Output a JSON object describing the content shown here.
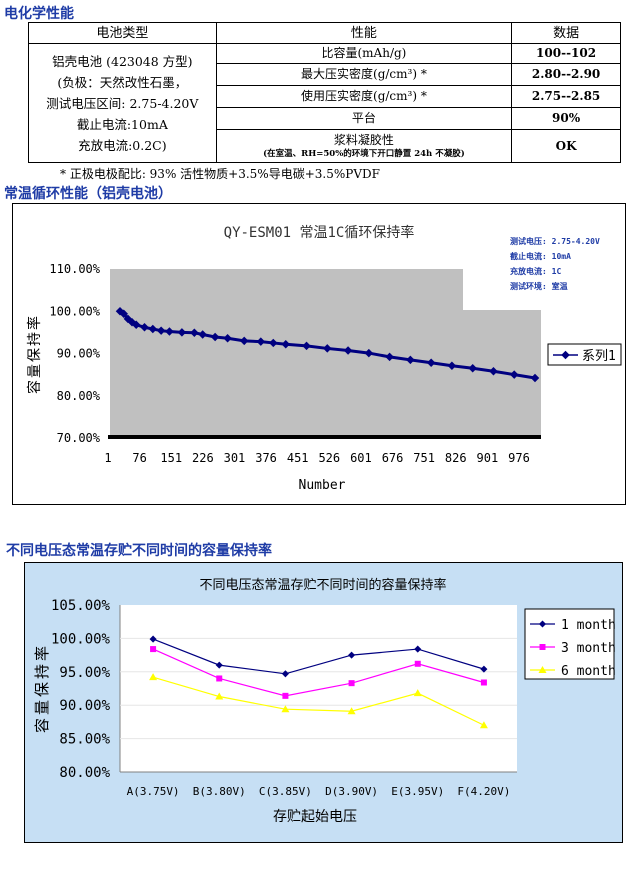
{
  "section1": {
    "title": "电化学性能"
  },
  "table": {
    "headers": [
      "电池类型",
      "性能",
      "数据"
    ],
    "battery_lines": [
      "铝壳电池 (423048 方型)",
      "(负极：天然改性石墨，",
      "测试电压区间: 2.75-4.20V",
      "截止电流:10mA",
      "充放电流:0.2C)"
    ],
    "rows": [
      {
        "prop": "比容量(mAh/g)",
        "value": "100--102"
      },
      {
        "prop": "最大压实密度(g/cm³) *",
        "value": "2.80--2.90"
      },
      {
        "prop": "使用压实密度(g/cm³) *",
        "value": "2.75--2.85"
      },
      {
        "prop": "平台",
        "value": "90%"
      },
      {
        "prop": "浆料凝胶性",
        "prop_note": "(在室温、RH=50%的环境下开口静置 24h 不凝胶)",
        "value": "OK"
      }
    ]
  },
  "footnote": "* 正极电极配比: 93% 活性物质+3.5%导电碳+3.5%PVDF",
  "section2": {
    "title": "常温循环性能（铝壳电池）"
  },
  "section3": {
    "title": "不同电压态常温存贮不同时间的容量保持率"
  },
  "chart_data": [
    {
      "type": "line",
      "title": "QY-ESM01 常温1C循环保持率",
      "xlabel": "Number",
      "ylabel": "容量保持率",
      "ylim": [
        70,
        110
      ],
      "yticks": [
        "110.00%",
        "100.00%",
        "90.00%",
        "80.00%",
        "70.00%"
      ],
      "xticks": [
        "1",
        "76",
        "151",
        "226",
        "301",
        "376",
        "451",
        "526",
        "601",
        "676",
        "751",
        "826",
        "901",
        "976"
      ],
      "notes": [
        "测试电压: 2.75-4.20V",
        "截止电流: 10mA",
        "充放电流: 1C",
        "测试环境: 室温"
      ],
      "legend_position": "right",
      "series": [
        {
          "name": "系列1",
          "color": "#000080",
          "x": [
            1,
            10,
            20,
            30,
            40,
            60,
            80,
            100,
            120,
            150,
            180,
            200,
            230,
            260,
            300,
            340,
            370,
            400,
            450,
            500,
            550,
            600,
            650,
            700,
            750,
            800,
            850,
            900,
            950,
            1000
          ],
          "values": [
            100.0,
            99.4,
            98.2,
            97.4,
            96.8,
            96.2,
            95.8,
            95.4,
            95.2,
            95.0,
            94.9,
            94.5,
            93.9,
            93.6,
            93.0,
            92.8,
            92.5,
            92.2,
            91.8,
            91.2,
            90.7,
            90.1,
            89.2,
            88.5,
            87.8,
            87.1,
            86.5,
            85.8,
            85.0,
            84.2
          ]
        }
      ]
    },
    {
      "type": "line",
      "title": "不同电压态常温存贮不同时间的容量保持率",
      "xlabel": "存贮起始电压",
      "ylabel": "容量保持率",
      "ylim": [
        80,
        105
      ],
      "yticks": [
        "105.00%",
        "100.00%",
        "95.00%",
        "90.00%",
        "85.00%",
        "80.00%"
      ],
      "categories": [
        "A(3.75V)",
        "B(3.80V)",
        "C(3.85V)",
        "D(3.90V)",
        "E(3.95V)",
        "F(4.20V)"
      ],
      "legend_position": "right",
      "series": [
        {
          "name": "1 month",
          "color": "#000080",
          "values": [
            99.9,
            96.0,
            94.7,
            97.5,
            98.4,
            95.4
          ]
        },
        {
          "name": "3 month",
          "color": "#ff00ff",
          "values": [
            98.4,
            94.0,
            91.4,
            93.3,
            96.2,
            93.4
          ]
        },
        {
          "name": "6 month",
          "color": "#ffff00",
          "values": [
            94.2,
            91.3,
            89.4,
            89.1,
            91.8,
            87.0
          ]
        }
      ]
    }
  ]
}
